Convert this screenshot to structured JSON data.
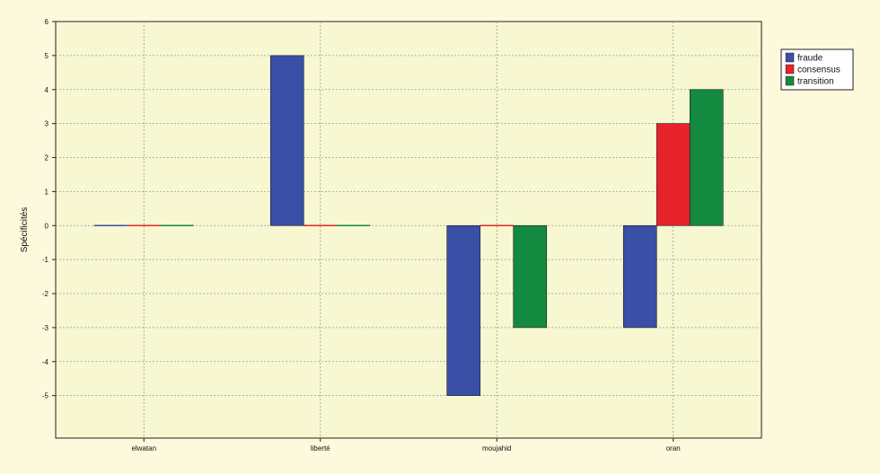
{
  "chart_data": {
    "type": "bar",
    "title": "",
    "xlabel": "",
    "ylabel": "Spécificités",
    "ylim": [
      -6,
      6
    ],
    "yticks": [
      6,
      5,
      4,
      3,
      2,
      1,
      0,
      -1,
      -2,
      -3,
      -4,
      -5
    ],
    "categories": [
      "elwatan",
      "liberté",
      "moujahid",
      "oran"
    ],
    "series": [
      {
        "name": "fraude",
        "color": "#3a4fa6",
        "values": [
          0,
          5,
          -5,
          -3
        ]
      },
      {
        "name": "consensus",
        "color": "#e8222a",
        "values": [
          0,
          0,
          0,
          3
        ]
      },
      {
        "name": "transition",
        "color": "#138a40",
        "values": [
          0,
          0,
          -3,
          4
        ]
      }
    ],
    "grid": true,
    "legend_position": "top-right",
    "colors": {
      "background": "#fdf9dc",
      "plot_background": "#f7f7d2",
      "grid": "#9a9a9a",
      "axis": "#222222"
    }
  }
}
